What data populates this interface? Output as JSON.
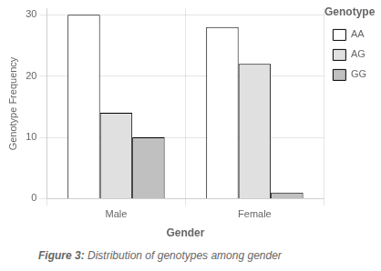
{
  "chart_data": {
    "type": "bar",
    "xlabel": "Gender",
    "ylabel": "Genotype Frequency",
    "legend_title": "Genotype",
    "caption": [
      "Figure 3:",
      "Distribution of genotypes among gender"
    ],
    "categories": [
      "Male",
      "Female"
    ],
    "series": [
      {
        "name": "AA",
        "color": "#ffffff",
        "values": [
          30,
          28
        ]
      },
      {
        "name": "AG",
        "color": "#e0e0e0",
        "values": [
          14,
          22
        ]
      },
      {
        "name": "GG",
        "color": "#c0c0c0",
        "values": [
          10,
          1
        ]
      }
    ],
    "ylim": [
      0,
      31
    ],
    "yticks": [
      0,
      10,
      20,
      30
    ],
    "grid": true,
    "legend": "right"
  }
}
